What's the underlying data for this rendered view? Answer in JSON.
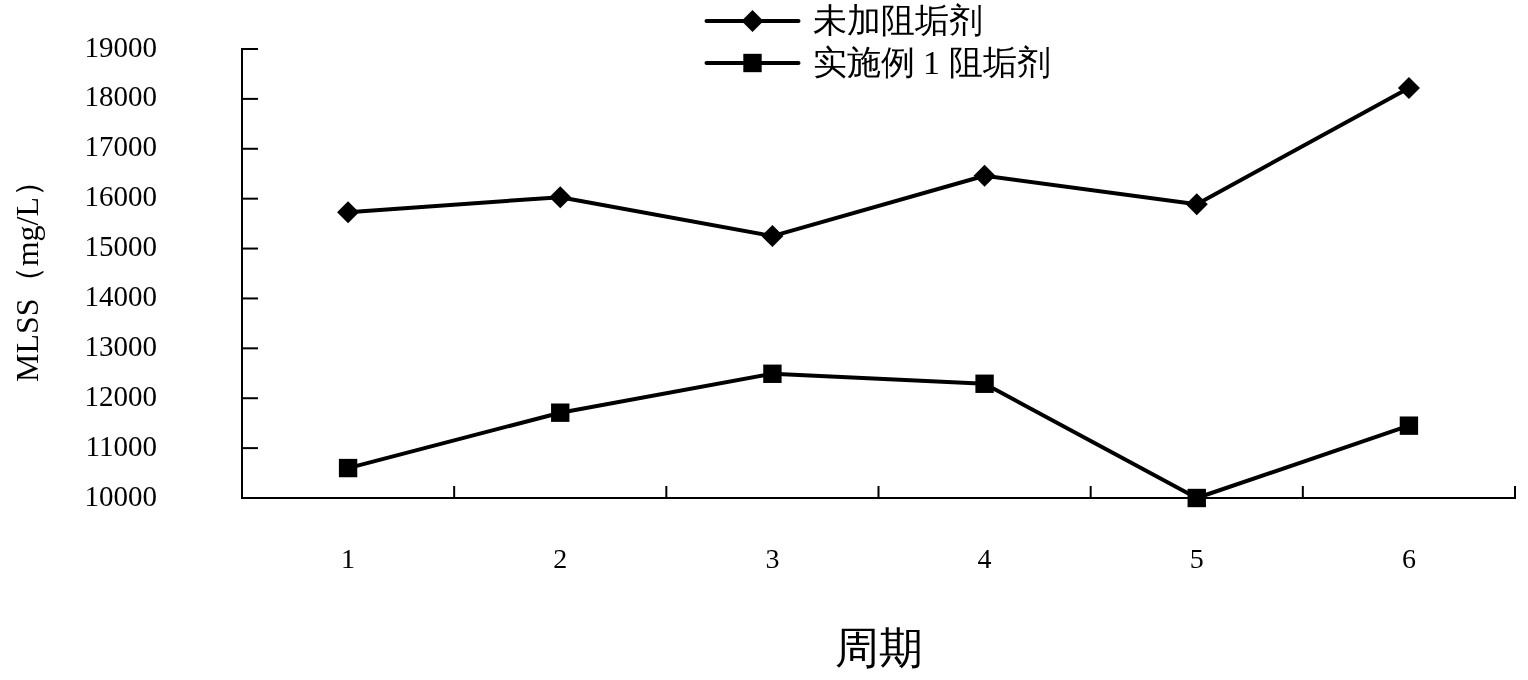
{
  "chart_data": {
    "type": "line",
    "xlabel": "周期",
    "ylabel": "MLSS（mg/L）",
    "categories": [
      "1",
      "2",
      "3",
      "4",
      "5",
      "6"
    ],
    "series": [
      {
        "name": "未加阻垢剂",
        "color": "#000000",
        "marker": "diamond",
        "values": [
          15730,
          16030,
          15250,
          16460,
          15890,
          18220
        ]
      },
      {
        "name": "实施例 1 阻垢剂",
        "color": "#000000",
        "marker": "square",
        "values": [
          10600,
          11710,
          12490,
          12290,
          10000,
          11450
        ]
      }
    ],
    "ylim": [
      10000,
      19000
    ],
    "yticks": [
      10000,
      11000,
      12000,
      13000,
      14000,
      15000,
      16000,
      17000,
      18000,
      19000
    ],
    "legend": "top"
  }
}
